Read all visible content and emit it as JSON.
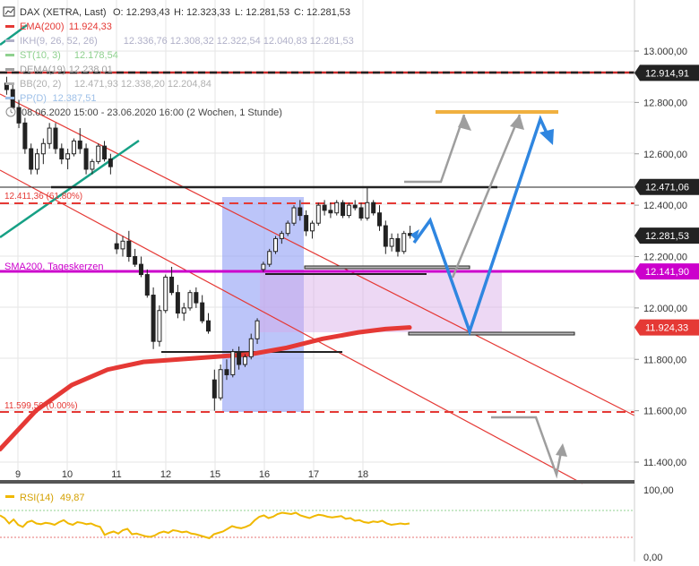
{
  "header": {
    "symbol": "DAX (XETRA, Last)",
    "open": "O: 12.293,43",
    "high": "H: 12.323,33",
    "low": "L: 12.281,53",
    "close": "C: 12.281,53"
  },
  "legend": [
    {
      "name": "EMA(200)",
      "value": "11.924,33",
      "color": "#e53935"
    },
    {
      "name": "IKH(9, 26, 52, 26)",
      "value": "12.336,76  12.308,32  12.322,54  12.040,83  12.281,53",
      "color": "#b0b0c8"
    },
    {
      "name": "ST(10, 3)",
      "value": "12.178,54",
      "color": "#8fd18f"
    },
    {
      "name": "DEMA(19)",
      "value": "12.238,01",
      "color": "#a0a0a0"
    },
    {
      "name": "BB(20, 2)",
      "value": "12.471,93  12.338,20  12.204,84",
      "color": "#b0b0b0"
    },
    {
      "name": "PP(D)",
      "value": "12.387,51",
      "color": "#9ec0e8"
    }
  ],
  "period_text": "08.06.2020 15:00 - 23.06.2020 16:00  (2 Wochen, 1 Stunde)",
  "annotations": {
    "fib_upper": "12.411,36 (61.80%)",
    "fib_lower": "11.599,50 (0.00%)",
    "sma_label": "SMA200, Tageskerzen"
  },
  "price_tags": [
    {
      "text": "12.914,91",
      "value": 12914.91,
      "bg": "#222222"
    },
    {
      "text": "12.471,06",
      "value": 12471.06,
      "bg": "#222222"
    },
    {
      "text": "12.281,53",
      "value": 12281.53,
      "bg": "#222222"
    },
    {
      "text": "12.141,90",
      "value": 12141.9,
      "bg": "#cc00cc"
    },
    {
      "text": "11.924,33",
      "value": 11924.33,
      "bg": "#e53935"
    }
  ],
  "y_ticks": [
    {
      "v": 13000,
      "t": "13.000,00"
    },
    {
      "v": 12800,
      "t": "12.800,00"
    },
    {
      "v": 12600,
      "t": "12.600,00"
    },
    {
      "v": 12400,
      "t": "12.400,00"
    },
    {
      "v": 12200,
      "t": "12.200,00"
    },
    {
      "v": 12000,
      "t": "12.000,00"
    },
    {
      "v": 11800,
      "t": "11.800,00"
    },
    {
      "v": 11600,
      "t": "11.600,00"
    },
    {
      "v": 11400,
      "t": "11.400,00"
    }
  ],
  "x_ticks": [
    "9",
    "10",
    "11",
    "12",
    "15",
    "16",
    "17",
    "18"
  ],
  "rsi": {
    "label": "RSI(14)",
    "value": "49,87",
    "ticks": [
      {
        "v": 100,
        "t": "100,00"
      },
      {
        "v": 0,
        "t": "0,00"
      }
    ],
    "values": [
      62,
      58,
      50,
      56,
      48,
      45,
      52,
      54,
      50,
      49,
      51,
      50,
      48,
      52,
      55,
      50,
      48,
      52,
      51,
      49,
      50,
      47,
      45,
      33,
      36,
      38,
      35,
      40,
      42,
      34,
      35,
      33,
      31,
      30,
      32,
      36,
      38,
      36,
      40,
      39,
      37,
      38,
      35,
      34,
      32,
      30,
      28,
      34,
      36,
      38,
      42,
      46,
      44,
      43,
      45,
      48,
      55,
      60,
      62,
      58,
      60,
      64,
      66,
      65,
      64,
      66,
      62,
      60,
      58,
      61,
      63,
      62,
      60,
      59,
      60,
      61,
      57,
      58,
      54,
      55,
      52,
      51,
      53,
      52,
      54,
      50,
      48,
      49,
      50,
      49,
      50
    ]
  },
  "chart_data": {
    "type": "candlestick",
    "title": "DAX (XETRA, Last)",
    "xlabel": "",
    "ylabel": "",
    "ylim": [
      11300,
      13150
    ],
    "x_categories": [
      "9",
      "10",
      "11",
      "12",
      "15",
      "16",
      "17",
      "18"
    ],
    "candles": [
      [
        12875,
        12900,
        12830,
        12850
      ],
      [
        12850,
        12870,
        12760,
        12780
      ],
      [
        12780,
        12810,
        12700,
        12720
      ],
      [
        12720,
        12740,
        12600,
        12620
      ],
      [
        12620,
        12640,
        12520,
        12540
      ],
      [
        12540,
        12620,
        12520,
        12600
      ],
      [
        12600,
        12660,
        12560,
        12640
      ],
      [
        12640,
        12720,
        12620,
        12700
      ],
      [
        12700,
        12720,
        12600,
        12620
      ],
      [
        12620,
        12640,
        12560,
        12580
      ],
      [
        12580,
        12620,
        12540,
        12600
      ],
      [
        12600,
        12660,
        12590,
        12650
      ],
      [
        12650,
        12700,
        12600,
        12620
      ],
      [
        12620,
        12640,
        12520,
        12540
      ],
      [
        12540,
        12580,
        12520,
        12570
      ],
      [
        12570,
        12640,
        12560,
        12630
      ],
      [
        12630,
        12650,
        12570,
        12580
      ],
      [
        12580,
        12600,
        12520,
        12550
      ],
      [
        12250,
        12290,
        12210,
        12230
      ],
      [
        12230,
        12280,
        12200,
        12260
      ],
      [
        12260,
        12300,
        12180,
        12200
      ],
      [
        12200,
        12230,
        12160,
        12170
      ],
      [
        12170,
        12200,
        12120,
        12130
      ],
      [
        12130,
        12150,
        12040,
        12050
      ],
      [
        12050,
        12080,
        11840,
        11870
      ],
      [
        11870,
        12010,
        11850,
        11990
      ],
      [
        11990,
        12130,
        11980,
        12120
      ],
      [
        12120,
        12160,
        12050,
        12060
      ],
      [
        12060,
        12090,
        11960,
        11980
      ],
      [
        11980,
        12020,
        11950,
        12000
      ],
      [
        12000,
        12070,
        11990,
        12060
      ],
      [
        12060,
        12080,
        12000,
        12020
      ],
      [
        12020,
        12050,
        11940,
        11950
      ],
      [
        11950,
        11980,
        11900,
        11910
      ],
      [
        11720,
        11760,
        11600,
        11650
      ],
      [
        11650,
        11780,
        11640,
        11760
      ],
      [
        11760,
        11800,
        11720,
        11740
      ],
      [
        11740,
        11840,
        11730,
        11830
      ],
      [
        11830,
        11850,
        11760,
        11780
      ],
      [
        11780,
        11820,
        11770,
        11810
      ],
      [
        11810,
        11900,
        11800,
        11880
      ],
      [
        11880,
        11960,
        11860,
        11950
      ],
      [
        12150,
        12180,
        12140,
        12170
      ],
      [
        12170,
        12230,
        12160,
        12220
      ],
      [
        12220,
        12280,
        12210,
        12270
      ],
      [
        12270,
        12300,
        12250,
        12290
      ],
      [
        12290,
        12340,
        12280,
        12330
      ],
      [
        12330,
        12400,
        12320,
        12390
      ],
      [
        12390,
        12420,
        12340,
        12360
      ],
      [
        12360,
        12380,
        12280,
        12300
      ],
      [
        12300,
        12340,
        12270,
        12330
      ],
      [
        12330,
        12410,
        12320,
        12400
      ],
      [
        12400,
        12420,
        12360,
        12380
      ],
      [
        12380,
        12410,
        12350,
        12370
      ],
      [
        12370,
        12420,
        12360,
        12410
      ],
      [
        12410,
        12420,
        12350,
        12360
      ],
      [
        12360,
        12410,
        12350,
        12400
      ],
      [
        12400,
        12420,
        12380,
        12390
      ],
      [
        12390,
        12410,
        12340,
        12350
      ],
      [
        12350,
        12470,
        12340,
        12410
      ],
      [
        12410,
        12420,
        12360,
        12370
      ],
      [
        12370,
        12400,
        12300,
        12320
      ],
      [
        12320,
        12340,
        12210,
        12240
      ],
      [
        12240,
        12290,
        12220,
        12270
      ],
      [
        12270,
        12290,
        12200,
        12220
      ],
      [
        12220,
        12300,
        12210,
        12290
      ],
      [
        12290,
        12320,
        12270,
        12282
      ]
    ],
    "ema200": [
      [
        0,
        11450
      ],
      [
        40,
        11600
      ],
      [
        80,
        11700
      ],
      [
        120,
        11760
      ],
      [
        160,
        11790
      ],
      [
        200,
        11800
      ],
      [
        240,
        11810
      ],
      [
        280,
        11820
      ],
      [
        320,
        11845
      ],
      [
        360,
        11880
      ],
      [
        400,
        11905
      ],
      [
        430,
        11918
      ],
      [
        457,
        11924
      ]
    ],
    "horizontal_levels": [
      {
        "name": "12.914,91",
        "value": 12914.91
      },
      {
        "name": "12.471,06",
        "value": 12471.06
      },
      {
        "name": "12.411,36 (61.80%)",
        "value": 12411.36
      },
      {
        "name": "SMA200, Tageskerzen",
        "value": 12141.9
      },
      {
        "name": "11.599,50 (0.00%)",
        "value": 11599.5
      }
    ]
  },
  "colors": {
    "accent_red": "#e53935",
    "magenta": "#cc00cc",
    "blue_path": "#2f86e0",
    "gray_path": "#9e9e9e",
    "orange_target": "#f0b040",
    "teal_line": "#16a085"
  }
}
